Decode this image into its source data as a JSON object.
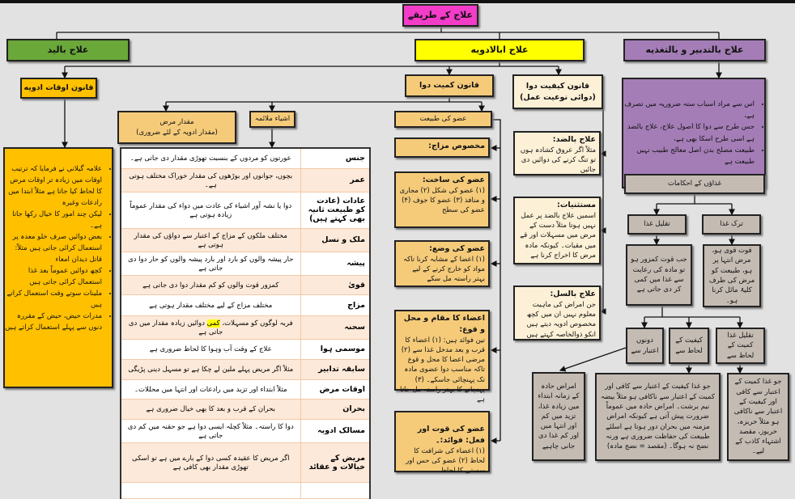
{
  "title": "علاج کے طریقے",
  "colors": {
    "title": "#f33cc8",
    "yad": "#6aa83a",
    "adwiya": "#ffff00",
    "tadbeer": "#a47db6",
    "awqat": "#ffc000",
    "kamiyat": "#f5cb7a",
    "kaifiyat": "#fcf0d6",
    "ghiza": "#c4bbb3",
    "row_alt": "#fde9d9"
  },
  "branches": {
    "yad": "علاج بالید",
    "adwiya": "علاج ابالادویه",
    "tadbeer": "علاج بالتدبیر و بالتغذیه"
  },
  "awqat": {
    "title": "قانون اوقات ادویه",
    "items": [
      "علامہ گیلانی نے فرمایا کہ ترتیب اوقات میں زیادہ تر اوقات مرض کا لحاظ کیا جاتا ہے مثلاً ابتدا میں رادعات وغیرہ",
      "لیکن چند امور کا خیال رکھا جاتا ہے۔",
      "بعض دوائیں صرف خلو معدہ پر استعمال کرائی جاتی ہیں مثلاً: قاتل دیدان امعاء",
      "کچھ دوائیں عموماً بعد غذا استعمال کرائی جاتی ہیں",
      "ملینات سوتے وقت استعمال کراتے ہیں",
      "مدرات حیض، حیض کے مقررہ دنوں سے پہلے استعمال کراتے ہیں"
    ]
  },
  "kamiyat": {
    "title": "قانون کمیت دوا",
    "miqdar": "مقدار مرض",
    "miqdar_sub": "(مقدار ادویہ کے لئے ضروری)",
    "ashya": "اشیاء ملائمہ",
    "uzw": "عضو کی طبیعت",
    "rows": [
      {
        "k": "جنس",
        "v": "عورتوں کو مردوں کے بنسبت تھوڑی مقدار دی جاتی ہے۔"
      },
      {
        "k": "عمر",
        "v": "بچوں، جوانوں اور بوڑھوں کی مقدار خوراک مختلف ہوتی ہے۔"
      },
      {
        "k": "عادات (عادت کو طبیعت ثانیہ بھی کہتے ہیں)",
        "v": "دوا یا نشہ آور اشیاء کی عادت میں دواء کی مقدار عموماً زیادہ ہوتی ہے"
      },
      {
        "k": "ملک و نسل",
        "v": "مختلف ملکوں کے مزاج کے اعتبار سے دواؤں کی مقدار ہوتی ہے"
      },
      {
        "k": "پیشہ",
        "v": "حار پیشہ والوں کو بارد اور بارد پیشہ والوں کو حار دوا دی جاتی ہے"
      },
      {
        "k": "قویٰ",
        "v": "کمزور قوت والوں کو کم مقدار دوا دی جاتی ہے"
      },
      {
        "k": "مزاج",
        "v": "مختلف مزاج کے لیے مختلف مقدار ہوتی ہے"
      },
      {
        "k": "سحنہ",
        "v_a": "فربہ لوگوں کو مسہلات، ",
        "v_hl": "کمی",
        "v_b": " دوائیں زیادہ مقدار میں دی جاتی ہے"
      },
      {
        "k": "موسمی ہوا",
        "v": "علاج کے وقت آب وہوا کا لحاظ ضروری ہے"
      },
      {
        "k": "سابقہ تدابیر",
        "v": "مثلاً اگر مریض پہلے ملین لے چکا ہے تو مسہل دینی پڑیگی"
      },
      {
        "k": "اوقات مرض",
        "v": "مثلاً ابتداء اور تزید میں رادعات اور انتہا میں محللات۔"
      },
      {
        "k": "بحران",
        "v": "بحران کے قرب و بعد کا بھی خیال ضروری ہے"
      },
      {
        "k": "مسالک ادویہ",
        "v": "دوا کا راستہ۔ مثلاً کچلہ ایسی دوا ہے جو حقنہ میں کم دی جاتی ہے"
      },
      {
        "k": "مریض کے خیالات و عقائد",
        "v": "اگر مریض کا عقیدہ کسی دوا کے بارے میں ہے تو اسکی تھوڑی مقدار بھی کافی ہے"
      }
    ],
    "organ": [
      {
        "h": "مخصوص مزاج:",
        "t": ""
      },
      {
        "h": "عضو کی ساخت:",
        "t": "(۱) عضو کی شکل (۲) مجاری و منافذ (۳) عضو کا جوف (۴) عضو کی سطح"
      },
      {
        "h": "عضو کی وضع:",
        "t": "(۱) اعضا کے مشابہ کرنا تاکہ مواد کو خارج کرنے کے لیے بہتر راستہ مل سکے"
      },
      {
        "h": "اعضاء کا مقام و محل و قوع:",
        "t": "تین فوائد ہیں: (۱) اعضاء کا قرب و بعد مدخل غذا سے (۲) مرضی اعضا کا محل و قوع تاکہ مناسب دوا عضوی مادہ تک پہنچائی جاسکے۔ (۳) پہنچانے کا بہتر راستہ مل جاتا ہے"
      },
      {
        "h": "عضو کی قوت اور فعل: فوائد:۔",
        "t": "(۱) اعضاء کی شرافت کا لحاظ (۲) عضو کی حس اور سستی کا لحاظ"
      }
    ]
  },
  "kaifiyat": {
    "title": "قانون کیفیت دوا (دوائی نوعیت عمل)",
    "items": [
      {
        "h": "علاج بالضد:",
        "t": "مثلاً اگر عروق کشادہ ہوں تو تنگ کرنے کی دوائیں دی جائیں"
      },
      {
        "h": "مستثنیات:",
        "t": "اسمیں علاج بالضد پر عمل نہیں ہوتا مثلاً دست کے مرض میں مسہلات اور قے میں مقیات۔ کیونکہ مادہ مرض کا اخراج کرنا ہے"
      },
      {
        "h": "علاج بالسل:",
        "t": "جن امراض کی ماہیت معلوم نہیں ان میں کچھ مخصوص ادویہ دیتے ہیں انکو ذوالخاصہ کہتے ہیں"
      }
    ]
  },
  "tadbeer": {
    "items": [
      "اس سے مراد اسباب ستہ ضروریہ میں تصرف ہے،",
      "جس طرح سے دوا کا اصول علاج، علاج بالضد ہے اسی طرح اسکا بھی ہے،",
      "طبیعت مصلح بدن اصل معالج طبیب نہیں طبیعت ہے"
    ],
    "ghiza": "غذاؤں کے احکامات",
    "tark": "ترک غذا",
    "taqleel": "تقلیل غذا",
    "tark_desc": "قوت قوی ہو، مرض انتہا پر ہو، طبیعت کو مرض کی طرف کلیۃً مائل کرنا ہو۔",
    "taqleel_desc": "جب قوت کمزور ہو تو مادہ کی رعایت سے غذا میں کمی کر دی جاتی ہے",
    "sub": [
      "دونوں اعتبار سے",
      "کیفیت کے لحاظ سے",
      "تقلیل غذا کمیت کے لحاظ سے"
    ],
    "sub_desc": [
      "امراض حادہ کے زمانہ ابتداء میں زیادہ غذا، تزید میں کم اور انتہا میں اور کم غذا دی جانی چاہیے",
      "جو غذا کیفیت کے اعتبار سے کافی اور کمیت کے اعتبار سے ناکافی ہو مثلاً بیضہ نیم برشت۔ امراض حادہ میں عموماً ضرورت پیش آتی ہے کیونکہ امراض مزمنہ میں بحران دور ہوتا ہے اسلئے طبیعت کی حفاظت ضروری ہے ورنہ نضج نہ ہوگا۔ (مقصد = نضج مادہ)",
      "جو غذا کمیت کے اعتبار سے کافی اور کیفیت کے اعتبار سے ناکافی ہو مثلاً خربزہ، خربوز، مقصد اشتہاء کاذب کے لیے۔"
    ]
  }
}
